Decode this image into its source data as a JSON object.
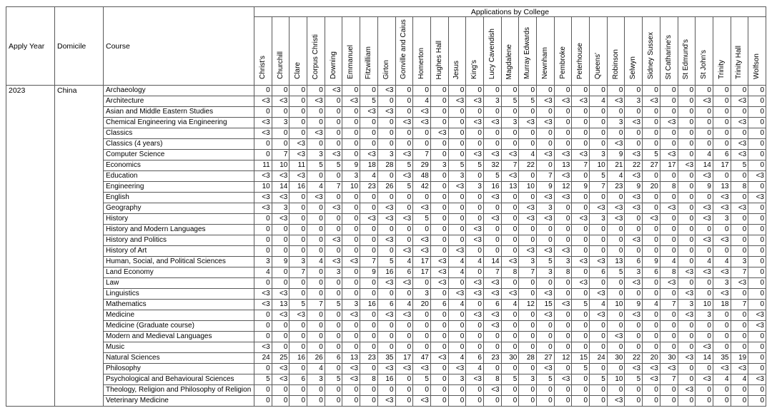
{
  "header": {
    "apply_year_label": "Apply Year",
    "domicile_label": "Domicile",
    "course_label": "Course",
    "applications_title": "Applications by College"
  },
  "filters": {
    "apply_year": "2023",
    "domicile": "China"
  },
  "colors": {
    "border": "#595959",
    "text": "#000000",
    "background": "#ffffff"
  },
  "chart_data": {
    "type": "table",
    "title": "Applications by College",
    "apply_year": "2023",
    "domicile": "China",
    "value_note_symbol": "<3",
    "colleges": [
      "Christ's",
      "Churchill",
      "Clare",
      "Corpus Christi",
      "Downing",
      "Emmanuel",
      "Fitzwilliam",
      "Girton",
      "Gonville and Caius",
      "Homerton",
      "Hughes Hall",
      "Jesus",
      "King's",
      "Lucy Cavendish",
      "Magdalene",
      "Murray Edwards",
      "Newnham",
      "Pembroke",
      "Peterhouse",
      "Queens'",
      "Robinson",
      "Selwyn",
      "Sidney Sussex",
      "St Catharine's",
      "St Edmund's",
      "St John's",
      "Trinity",
      "Trinity Hall",
      "Wolfson"
    ],
    "courses": [
      "Archaeology",
      "Architecture",
      "Asian and Middle Eastern Studies",
      "Chemical Engineering via Engineering",
      "Classics",
      "Classics (4 years)",
      "Computer Science",
      "Economics",
      "Education",
      "Engineering",
      "English",
      "Geography",
      "History",
      "History and Modern Languages",
      "History and Politics",
      "History of Art",
      "Human, Social, and Political Sciences",
      "Land Economy",
      "Law",
      "Linguistics",
      "Mathematics",
      "Medicine",
      "Medicine (Graduate course)",
      "Modern and Medieval Languages",
      "Music",
      "Natural Sciences",
      "Philosophy",
      "Psychological and Behavioural Sciences",
      "Theology, Religion and Philosophy of Religion",
      "Veterinary Medicine"
    ],
    "values": [
      [
        "0",
        "0",
        "0",
        "0",
        "<3",
        "0",
        "0",
        "<3",
        "0",
        "0",
        "0",
        "0",
        "0",
        "0",
        "0",
        "0",
        "0",
        "0",
        "0",
        "0",
        "0",
        "0",
        "0",
        "0",
        "0",
        "0",
        "0",
        "0",
        "0"
      ],
      [
        "<3",
        "<3",
        "0",
        "<3",
        "0",
        "<3",
        "5",
        "0",
        "0",
        "4",
        "0",
        "<3",
        "<3",
        "3",
        "5",
        "5",
        "<3",
        "<3",
        "<3",
        "4",
        "<3",
        "3",
        "<3",
        "0",
        "0",
        "<3",
        "0",
        "<3",
        "0"
      ],
      [
        "0",
        "0",
        "0",
        "0",
        "0",
        "0",
        "<3",
        "<3",
        "0",
        "<3",
        "0",
        "0",
        "0",
        "0",
        "0",
        "0",
        "0",
        "0",
        "0",
        "0",
        "0",
        "0",
        "0",
        "0",
        "0",
        "0",
        "0",
        "0",
        "0"
      ],
      [
        "<3",
        "3",
        "0",
        "0",
        "0",
        "0",
        "0",
        "0",
        "<3",
        "<3",
        "0",
        "0",
        "<3",
        "<3",
        "3",
        "<3",
        "<3",
        "0",
        "0",
        "0",
        "3",
        "<3",
        "0",
        "<3",
        "0",
        "0",
        "0",
        "<3",
        "0"
      ],
      [
        "<3",
        "0",
        "0",
        "<3",
        "0",
        "0",
        "0",
        "0",
        "0",
        "0",
        "<3",
        "0",
        "0",
        "0",
        "0",
        "0",
        "0",
        "0",
        "0",
        "0",
        "0",
        "0",
        "0",
        "0",
        "0",
        "0",
        "0",
        "0",
        "0"
      ],
      [
        "0",
        "0",
        "<3",
        "0",
        "0",
        "0",
        "0",
        "0",
        "0",
        "0",
        "0",
        "0",
        "0",
        "0",
        "0",
        "0",
        "0",
        "0",
        "0",
        "0",
        "<3",
        "0",
        "0",
        "0",
        "0",
        "0",
        "0",
        "<3",
        "0"
      ],
      [
        "0",
        "7",
        "<3",
        "3",
        "<3",
        "0",
        "<3",
        "3",
        "<3",
        "7",
        "0",
        "0",
        "<3",
        "<3",
        "<3",
        "4",
        "<3",
        "<3",
        "<3",
        "3",
        "9",
        "<3",
        "5",
        "<3",
        "0",
        "4",
        "6",
        "<3",
        "0"
      ],
      [
        "11",
        "10",
        "11",
        "5",
        "5",
        "9",
        "18",
        "28",
        "5",
        "29",
        "3",
        "5",
        "5",
        "32",
        "7",
        "22",
        "0",
        "13",
        "7",
        "10",
        "21",
        "22",
        "27",
        "17",
        "<3",
        "14",
        "17",
        "5",
        "0"
      ],
      [
        "<3",
        "<3",
        "<3",
        "0",
        "0",
        "3",
        "4",
        "0",
        "<3",
        "48",
        "0",
        "3",
        "0",
        "5",
        "<3",
        "0",
        "7",
        "<3",
        "0",
        "5",
        "4",
        "<3",
        "0",
        "0",
        "0",
        "<3",
        "0",
        "0",
        "<3"
      ],
      [
        "10",
        "14",
        "16",
        "4",
        "7",
        "10",
        "23",
        "26",
        "5",
        "42",
        "0",
        "<3",
        "3",
        "16",
        "13",
        "10",
        "9",
        "12",
        "9",
        "7",
        "23",
        "9",
        "20",
        "8",
        "0",
        "9",
        "13",
        "8",
        "0"
      ],
      [
        "<3",
        "<3",
        "0",
        "<3",
        "0",
        "0",
        "0",
        "0",
        "0",
        "0",
        "0",
        "0",
        "0",
        "<3",
        "0",
        "0",
        "<3",
        "<3",
        "0",
        "0",
        "0",
        "<3",
        "0",
        "0",
        "0",
        "0",
        "<3",
        "0",
        "<3"
      ],
      [
        "<3",
        "3",
        "0",
        "0",
        "<3",
        "0",
        "0",
        "<3",
        "0",
        "<3",
        "0",
        "0",
        "0",
        "0",
        "0",
        "<3",
        "3",
        "0",
        "0",
        "<3",
        "<3",
        "<3",
        "0",
        "<3",
        "0",
        "<3",
        "<3",
        "<3",
        "0"
      ],
      [
        "0",
        "<3",
        "0",
        "0",
        "0",
        "0",
        "<3",
        "<3",
        "<3",
        "5",
        "0",
        "0",
        "0",
        "<3",
        "0",
        "<3",
        "<3",
        "0",
        "<3",
        "3",
        "<3",
        "0",
        "<3",
        "0",
        "0",
        "<3",
        "3",
        "0",
        "0"
      ],
      [
        "0",
        "0",
        "0",
        "0",
        "0",
        "0",
        "0",
        "0",
        "0",
        "0",
        "0",
        "0",
        "<3",
        "0",
        "0",
        "0",
        "0",
        "0",
        "0",
        "0",
        "0",
        "0",
        "0",
        "0",
        "0",
        "0",
        "0",
        "0",
        "0"
      ],
      [
        "0",
        "0",
        "0",
        "0",
        "<3",
        "0",
        "0",
        "<3",
        "0",
        "<3",
        "0",
        "0",
        "<3",
        "0",
        "0",
        "0",
        "0",
        "0",
        "0",
        "0",
        "0",
        "<3",
        "0",
        "0",
        "0",
        "<3",
        "<3",
        "0",
        "0"
      ],
      [
        "0",
        "0",
        "0",
        "0",
        "0",
        "0",
        "0",
        "0",
        "<3",
        "<3",
        "0",
        "<3",
        "0",
        "0",
        "0",
        "<3",
        "<3",
        "<3",
        "0",
        "0",
        "0",
        "0",
        "0",
        "0",
        "0",
        "0",
        "0",
        "0",
        "0"
      ],
      [
        "3",
        "9",
        "3",
        "4",
        "<3",
        "<3",
        "7",
        "5",
        "4",
        "17",
        "<3",
        "4",
        "4",
        "14",
        "<3",
        "3",
        "5",
        "3",
        "<3",
        "<3",
        "13",
        "6",
        "9",
        "4",
        "0",
        "4",
        "4",
        "3",
        "0"
      ],
      [
        "4",
        "0",
        "7",
        "0",
        "3",
        "0",
        "9",
        "16",
        "6",
        "17",
        "<3",
        "4",
        "0",
        "7",
        "8",
        "7",
        "3",
        "8",
        "0",
        "6",
        "5",
        "3",
        "6",
        "8",
        "<3",
        "<3",
        "<3",
        "7",
        "0"
      ],
      [
        "0",
        "0",
        "0",
        "0",
        "0",
        "0",
        "0",
        "<3",
        "<3",
        "0",
        "<3",
        "0",
        "<3",
        "<3",
        "0",
        "0",
        "0",
        "0",
        "<3",
        "0",
        "0",
        "<3",
        "0",
        "<3",
        "0",
        "0",
        "3",
        "<3",
        "0"
      ],
      [
        "<3",
        "<3",
        "0",
        "0",
        "0",
        "0",
        "0",
        "0",
        "0",
        "3",
        "0",
        "<3",
        "<3",
        "<3",
        "<3",
        "0",
        "<3",
        "0",
        "0",
        "<3",
        "0",
        "0",
        "0",
        "0",
        "<3",
        "0",
        "<3",
        "0",
        "0"
      ],
      [
        "<3",
        "13",
        "5",
        "7",
        "5",
        "3",
        "16",
        "6",
        "4",
        "20",
        "6",
        "4",
        "0",
        "6",
        "4",
        "12",
        "15",
        "<3",
        "5",
        "4",
        "10",
        "9",
        "4",
        "7",
        "3",
        "10",
        "18",
        "7",
        "0"
      ],
      [
        "0",
        "<3",
        "<3",
        "0",
        "0",
        "<3",
        "0",
        "<3",
        "<3",
        "0",
        "0",
        "0",
        "<3",
        "<3",
        "0",
        "0",
        "<3",
        "0",
        "0",
        "<3",
        "0",
        "<3",
        "0",
        "0",
        "<3",
        "3",
        "0",
        "0",
        "<3"
      ],
      [
        "0",
        "0",
        "0",
        "0",
        "0",
        "0",
        "0",
        "0",
        "0",
        "0",
        "0",
        "0",
        "0",
        "<3",
        "0",
        "0",
        "0",
        "0",
        "0",
        "0",
        "0",
        "0",
        "0",
        "0",
        "0",
        "0",
        "0",
        "0",
        "<3"
      ],
      [
        "0",
        "0",
        "0",
        "0",
        "0",
        "0",
        "0",
        "0",
        "0",
        "0",
        "0",
        "0",
        "0",
        "0",
        "0",
        "0",
        "0",
        "0",
        "0",
        "0",
        "<3",
        "0",
        "0",
        "0",
        "0",
        "0",
        "0",
        "0",
        "0"
      ],
      [
        "<3",
        "0",
        "0",
        "0",
        "0",
        "0",
        "0",
        "0",
        "0",
        "0",
        "0",
        "0",
        "0",
        "0",
        "0",
        "0",
        "0",
        "0",
        "0",
        "0",
        "0",
        "0",
        "0",
        "0",
        "0",
        "<3",
        "0",
        "0",
        "0"
      ],
      [
        "24",
        "25",
        "16",
        "26",
        "6",
        "13",
        "23",
        "35",
        "17",
        "47",
        "<3",
        "4",
        "6",
        "23",
        "30",
        "28",
        "27",
        "12",
        "15",
        "24",
        "30",
        "22",
        "20",
        "30",
        "<3",
        "14",
        "35",
        "19",
        "0"
      ],
      [
        "0",
        "<3",
        "0",
        "4",
        "0",
        "<3",
        "0",
        "<3",
        "<3",
        "<3",
        "0",
        "<3",
        "4",
        "0",
        "0",
        "0",
        "<3",
        "0",
        "5",
        "0",
        "0",
        "<3",
        "<3",
        "<3",
        "0",
        "0",
        "<3",
        "<3",
        "0"
      ],
      [
        "5",
        "<3",
        "6",
        "3",
        "5",
        "<3",
        "8",
        "16",
        "0",
        "5",
        "0",
        "3",
        "<3",
        "8",
        "5",
        "3",
        "5",
        "<3",
        "0",
        "5",
        "10",
        "5",
        "<3",
        "7",
        "0",
        "<3",
        "4",
        "4",
        "<3"
      ],
      [
        "0",
        "0",
        "0",
        "0",
        "0",
        "0",
        "0",
        "0",
        "0",
        "0",
        "0",
        "0",
        "0",
        "<3",
        "0",
        "0",
        "0",
        "0",
        "0",
        "0",
        "0",
        "0",
        "0",
        "0",
        "<3",
        "0",
        "0",
        "0",
        "0"
      ],
      [
        "0",
        "0",
        "0",
        "0",
        "0",
        "0",
        "0",
        "<3",
        "0",
        "<3",
        "0",
        "0",
        "0",
        "0",
        "0",
        "0",
        "0",
        "0",
        "0",
        "0",
        "<3",
        "0",
        "0",
        "0",
        "0",
        "0",
        "0",
        "0",
        "0"
      ]
    ]
  }
}
